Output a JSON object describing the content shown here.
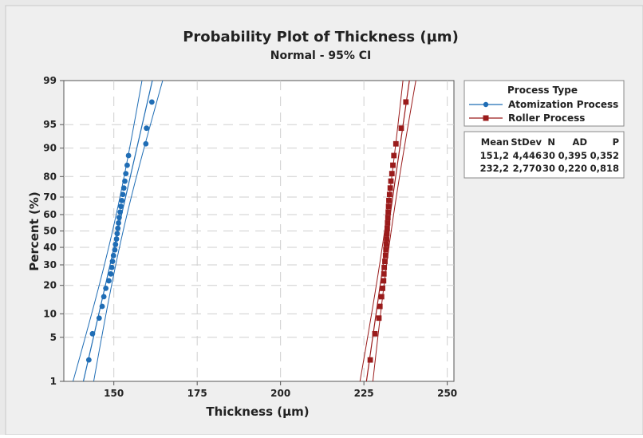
{
  "chart_data": {
    "type": "scatter",
    "title": "Probability Plot of Thickness (µm)",
    "subtitle": "Normal - 95% CI",
    "xlabel": "Thickness (µm)",
    "ylabel": "Percent (%)",
    "xlim": [
      135,
      252
    ],
    "ylim_percent": [
      1,
      99
    ],
    "y_scale": "normal-probability",
    "grid": true,
    "x_ticks": [
      150,
      175,
      200,
      225,
      250
    ],
    "y_ticks": [
      1,
      5,
      10,
      20,
      30,
      40,
      50,
      60,
      70,
      80,
      90,
      95,
      99
    ],
    "legend": {
      "title": "Process Type",
      "placement": "right",
      "entries": [
        {
          "name": "Atomization Process",
          "color": "#1f6db5",
          "marker": "circle"
        },
        {
          "name": "Roller Process",
          "color": "#9a1b1b",
          "marker": "square"
        }
      ]
    },
    "stats_table": {
      "headers": [
        "Mean",
        "StDev",
        "N",
        "AD",
        "P"
      ],
      "rows": [
        [
          "151,2",
          "4,446",
          "30",
          "0,395",
          "0,352"
        ],
        [
          "232,2",
          "2,770",
          "30",
          "0,220",
          "0,818"
        ]
      ]
    },
    "series": [
      {
        "name": "Atomization Process",
        "color": "#1f6db5",
        "marker": "circle",
        "mean": 151.2,
        "stdev": 4.446,
        "n": 30,
        "x": [
          142.5,
          143.6,
          145.6,
          146.5,
          147.0,
          147.6,
          148.5,
          149.1,
          149.4,
          149.6,
          149.9,
          150.3,
          150.5,
          150.8,
          151.0,
          151.2,
          151.4,
          151.6,
          151.9,
          152.1,
          152.4,
          152.7,
          153.0,
          153.3,
          153.6,
          154.0,
          154.4,
          159.6,
          159.8,
          161.4
        ]
      },
      {
        "name": "Roller Process",
        "color": "#9a1b1b",
        "marker": "square",
        "mean": 232.2,
        "stdev": 2.77,
        "n": 30,
        "x": [
          226.9,
          228.3,
          229.5,
          229.8,
          230.3,
          230.6,
          230.9,
          231.0,
          231.1,
          231.3,
          231.5,
          231.6,
          231.7,
          231.8,
          231.9,
          232.0,
          232.1,
          232.2,
          232.3,
          232.4,
          232.5,
          232.7,
          232.9,
          233.1,
          233.4,
          233.7,
          234.0,
          234.6,
          236.2,
          237.6
        ]
      }
    ]
  }
}
